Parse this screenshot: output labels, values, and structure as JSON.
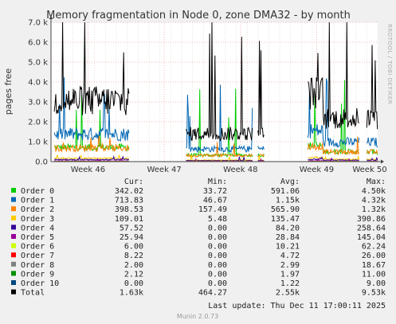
{
  "chart_data": {
    "type": "line",
    "title": "Memory fragmentation in Node 0, zone DMA32 - by month",
    "ylabel": "pages free",
    "side_label": "RRDTOOL / TOBI OETIKER",
    "ylim": [
      0,
      7000
    ],
    "y_ticks": [
      {
        "value": 0,
        "label": "0.0"
      },
      {
        "value": 1000,
        "label": "1.0 k"
      },
      {
        "value": 2000,
        "label": "2.0 k"
      },
      {
        "value": 3000,
        "label": "3.0 k"
      },
      {
        "value": 4000,
        "label": "4.0 k"
      },
      {
        "value": 5000,
        "label": "5.0 k"
      },
      {
        "value": 6000,
        "label": "6.0 k"
      },
      {
        "value": 7000,
        "label": "7.0 k"
      }
    ],
    "xlim": [
      0,
      30
    ],
    "x_ticks": [
      {
        "value": 3.4,
        "label": "Week 46"
      },
      {
        "value": 10.4,
        "label": "Week 47"
      },
      {
        "value": 17.4,
        "label": "Week 48"
      },
      {
        "value": 24.4,
        "label": "Week 49"
      },
      {
        "value": 31.4,
        "label": "Week 50"
      }
    ],
    "grid": true,
    "legend_columns": [
      "Cur:",
      "Min:",
      "Avg:",
      "Max:"
    ],
    "series": [
      {
        "name": "Order 0",
        "color": "#00cc00",
        "cur": "342.02",
        "min": "33.72",
        "avg": "591.06",
        "max": "4.50k"
      },
      {
        "name": "Order 1",
        "color": "#0066b3",
        "cur": "713.83",
        "min": "46.67",
        "avg": "1.15k",
        "max": "4.32k"
      },
      {
        "name": "Order 2",
        "color": "#ff8000",
        "cur": "398.53",
        "min": "157.49",
        "avg": "565.90",
        "max": "1.32k"
      },
      {
        "name": "Order 3",
        "color": "#ffcc00",
        "cur": "109.01",
        "min": "5.48",
        "avg": "135.47",
        "max": "390.86"
      },
      {
        "name": "Order 4",
        "color": "#330099",
        "cur": "57.52",
        "min": "0.00",
        "avg": "84.20",
        "max": "258.64"
      },
      {
        "name": "Order 5",
        "color": "#990099",
        "cur": "25.94",
        "min": "0.00",
        "avg": "28.84",
        "max": "145.04"
      },
      {
        "name": "Order 6",
        "color": "#ccff00",
        "cur": "6.00",
        "min": "0.00",
        "avg": "10.21",
        "max": "62.24"
      },
      {
        "name": "Order 7",
        "color": "#ff0000",
        "cur": "8.22",
        "min": "0.00",
        "avg": "4.72",
        "max": "26.00"
      },
      {
        "name": "Order 8",
        "color": "#808080",
        "cur": "2.00",
        "min": "0.00",
        "avg": "2.99",
        "max": "18.67"
      },
      {
        "name": "Order 9",
        "color": "#008f00",
        "cur": "2.12",
        "min": "0.00",
        "avg": "1.97",
        "max": "11.00"
      },
      {
        "name": "Order 10",
        "color": "#00487d",
        "cur": "0.00",
        "min": "0.00",
        "avg": "1.22",
        "max": "9.00"
      },
      {
        "name": "Total",
        "color": "#000000",
        "cur": "1.63k",
        "min": "464.27",
        "avg": "2.55k",
        "max": "9.53k"
      }
    ],
    "segments": [
      {
        "x_start": 0.3,
        "x_end": 7.2
      },
      {
        "x_start": 12.4,
        "x_end": 18.5
      },
      {
        "x_start": 19.0,
        "x_end": 19.6
      },
      {
        "x_start": 23.6,
        "x_end": 28.3
      },
      {
        "x_start": 29.0,
        "x_end": 30.0
      }
    ]
  },
  "last_update": "Last update: Thu Dec 11 17:00:11 2025",
  "footer": "Munin 2.0.73"
}
